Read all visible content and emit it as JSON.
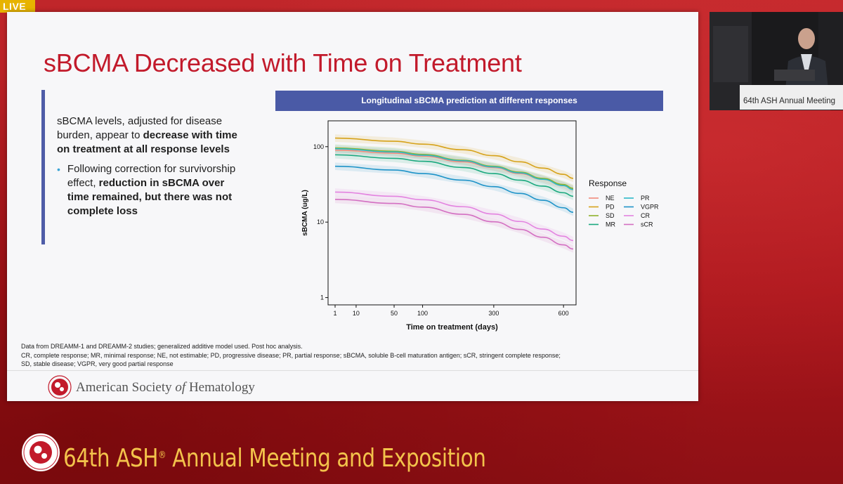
{
  "live_badge": "LIVE",
  "slide": {
    "title": "sBCMA Decreased with Time on Treatment",
    "left_text": {
      "lead_plain": "sBCMA levels, adjusted for disease burden, appear to ",
      "lead_bold": "decrease with time on treatment at all response levels",
      "bullet_plain": "Following correction for survivorship effect, ",
      "bullet_bold": "reduction in sBCMA over time remained, but there was not complete loss"
    },
    "chart_header": "Longitudinal sBCMA prediction at different responses",
    "footnotes": [
      "Data from DREAMM-1 and DREAMM-2 studies; generalized additive model used. Post hoc analysis.",
      "CR, complete response; MR, minimal response; NE, not estimable; PD, progressive disease; PR, partial response; sBCMA, soluble B-cell maturation antigen; sCR, stringent complete response;",
      "SD, stable disease; VGPR, very good partial response"
    ],
    "footer_org_prefix": "American Society ",
    "footer_org_of": "of",
    "footer_org_suffix": " Hematology"
  },
  "presenter_video": {
    "podium_text": "64th ASH Annual Meeting"
  },
  "event_banner": {
    "title_part1": "64th ASH",
    "title_mark": "®",
    "title_part2": " Annual Meeting and Exposition"
  },
  "chart_data": {
    "type": "line",
    "title": "",
    "xlabel": "Time on treatment (days)",
    "ylabel": "sBCMA (ug/L)",
    "x_scale": "sqrt",
    "y_scale": "log",
    "x_ticks": [
      1,
      10,
      50,
      100,
      300,
      600
    ],
    "y_ticks": [
      1,
      10,
      100
    ],
    "xlim": [
      0,
      650
    ],
    "ylim": [
      0.8,
      220
    ],
    "legend_title": "Response",
    "legend_placement": "right",
    "grid": false,
    "x": [
      1,
      50,
      100,
      200,
      300,
      400,
      500,
      600,
      650
    ],
    "series": [
      {
        "name": "NE",
        "color": "#f08a7c",
        "values": [
          90,
          82,
          75,
          63,
          53,
          44,
          37,
          30.5,
          27.5
        ]
      },
      {
        "name": "PD",
        "color": "#d6a21a",
        "values": [
          130,
          118,
          108,
          91,
          76,
          63,
          52,
          43,
          38
        ]
      },
      {
        "name": "SD",
        "color": "#8fb32a",
        "values": [
          96,
          87,
          79,
          66,
          55,
          46,
          38,
          31.5,
          28
        ]
      },
      {
        "name": "MR",
        "color": "#1aa87e",
        "values": [
          78,
          70,
          64,
          53,
          44,
          36,
          30,
          24.5,
          22
        ]
      },
      {
        "name": "PR",
        "color": "#2cb8c9",
        "values": [
          94,
          85,
          77,
          65,
          54,
          45,
          37,
          30.5,
          27
        ]
      },
      {
        "name": "VGPR",
        "color": "#1e93c8",
        "values": [
          55,
          49,
          44,
          36,
          29.5,
          24,
          19.5,
          15.5,
          13.5
        ]
      },
      {
        "name": "CR",
        "color": "#e383e0",
        "values": [
          25,
          22,
          19.8,
          16,
          12.8,
          10.2,
          8.1,
          6.5,
          5.7
        ]
      },
      {
        "name": "sCR",
        "color": "#d36fc2",
        "values": [
          20,
          17.7,
          15.8,
          12.7,
          10.1,
          8.0,
          6.3,
          5.0,
          4.4
        ]
      }
    ]
  }
}
